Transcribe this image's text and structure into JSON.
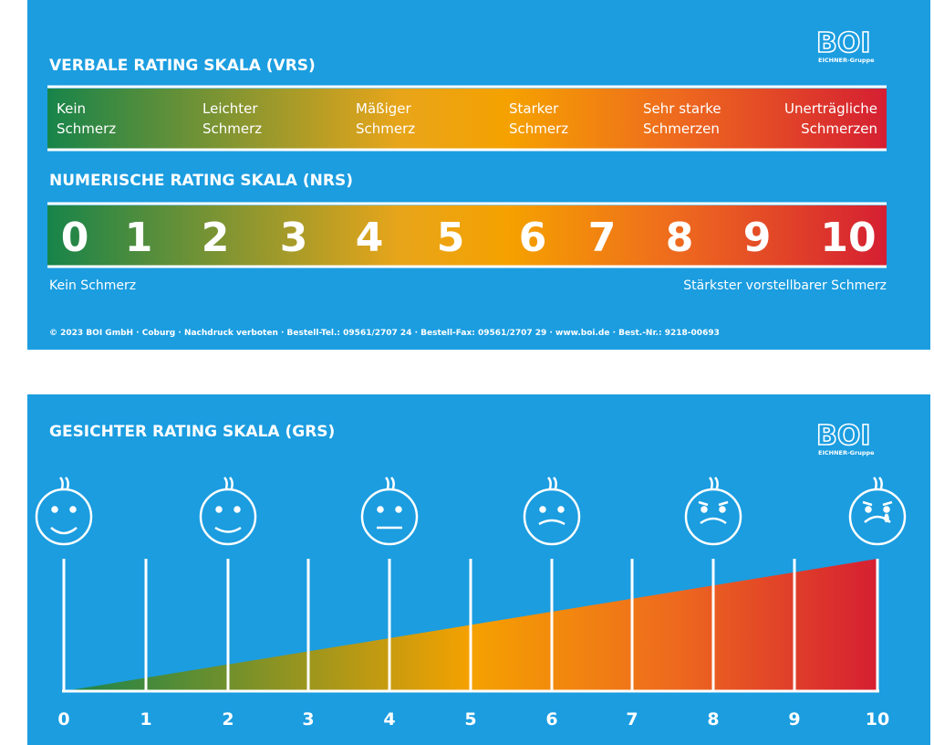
{
  "logo": {
    "name": "BOI",
    "group": "EICHNER-Gruppe"
  },
  "vrs": {
    "title": "VERBALE RATING SKALA (VRS)",
    "labels": [
      [
        "Kein",
        "Schmerz"
      ],
      [
        "Leichter",
        "Schmerz"
      ],
      [
        "Mäßiger",
        "Schmerz"
      ],
      [
        "Starker",
        "Schmerz"
      ],
      [
        "Sehr starke",
        "Schmerzen"
      ],
      [
        "Unerträgliche",
        "Schmerzen"
      ]
    ]
  },
  "nrs": {
    "title": "NUMERISCHE RATING SKALA (NRS)",
    "numbers": [
      "0",
      "1",
      "2",
      "3",
      "4",
      "5",
      "6",
      "7",
      "8",
      "9",
      "10"
    ],
    "left_label": "Kein Schmerz",
    "right_label": "Stärkster vorstellbarer Schmerz"
  },
  "footer": "© 2023 BOI GmbH · Coburg · Nachdruck verboten · Bestell-Tel.: 09561/2707 24 · Bestell-Fax: 09561/2707 29 · www.boi.de · Best.-Nr.: 9218-00693",
  "grs": {
    "title": "GESICHTER RATING SKALA (GRS)",
    "ticks": [
      "0",
      "1",
      "2",
      "3",
      "4",
      "5",
      "6",
      "7",
      "8",
      "9",
      "10"
    ]
  }
}
